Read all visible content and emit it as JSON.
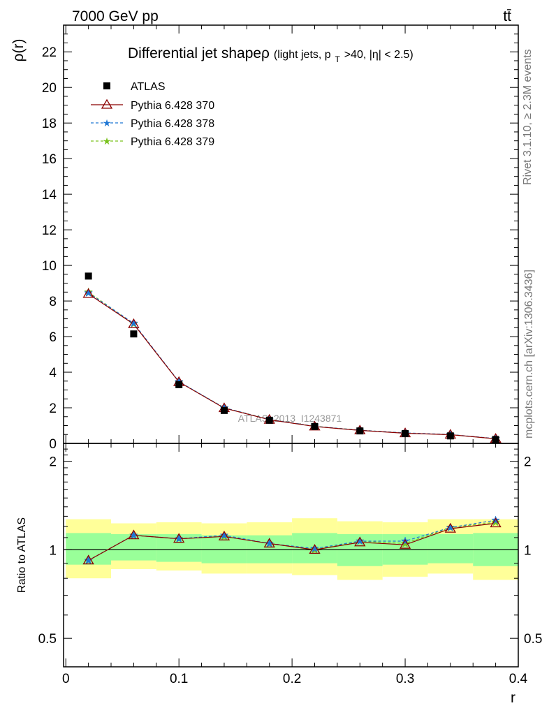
{
  "header": {
    "left": "7000 GeV pp",
    "right": "tt̄"
  },
  "side_labels": {
    "rivet": "Rivet 3.1.10, ≥ 2.3M events",
    "mcplots": "mcplots.cern.ch [arXiv:1306.3436]"
  },
  "chart_data": {
    "type": "line",
    "title_main": "Differential jet shapeρ",
    "title_sub_a": "(light jets, p",
    "title_sub_b": "T",
    "title_sub_c": ">40, |η| < 2.5)",
    "xlabel": "r",
    "ylabel": "ρ(r)",
    "ratio_ylabel": "Ratio to ATLAS",
    "watermark": "ATLAS_2013_I1243871",
    "xlim": [
      -0.002,
      0.4
    ],
    "ylim": [
      0,
      23.5
    ],
    "ratio_ylim": [
      0.4,
      2.3
    ],
    "x_ticks": [
      0,
      0.1,
      0.2,
      0.3,
      0.4
    ],
    "x_tick_labels": [
      "0",
      "0.1",
      "0.2",
      "0.3",
      "0.4"
    ],
    "y_ticks": [
      0,
      2,
      4,
      6,
      8,
      10,
      12,
      14,
      16,
      18,
      20,
      22
    ],
    "y_tick_labels": [
      "0",
      "2",
      "4",
      "6",
      "8",
      "10",
      "12",
      "14",
      "16",
      "18",
      "20",
      "22"
    ],
    "ratio_ticks": [
      0.5,
      1,
      2
    ],
    "ratio_tick_labels": [
      "0.5",
      "1",
      "2"
    ],
    "x": [
      0.02,
      0.06,
      0.1,
      0.14,
      0.18,
      0.22,
      0.26,
      0.3,
      0.34,
      0.38
    ],
    "bin_edges": [
      0.0,
      0.04,
      0.08,
      0.12,
      0.16,
      0.2,
      0.24,
      0.28,
      0.32,
      0.36,
      0.4
    ],
    "data": {
      "name": "ATLAS",
      "values": [
        9.4,
        6.15,
        3.3,
        1.85,
        1.3,
        0.95,
        0.7,
        0.55,
        0.42,
        0.22
      ],
      "band_inner": [
        [
          0.89,
          1.14
        ],
        [
          0.92,
          1.13
        ],
        [
          0.91,
          1.13
        ],
        [
          0.9,
          1.12
        ],
        [
          0.9,
          1.12
        ],
        [
          0.9,
          1.14
        ],
        [
          0.88,
          1.13
        ],
        [
          0.89,
          1.13
        ],
        [
          0.9,
          1.13
        ],
        [
          0.88,
          1.14
        ]
      ],
      "band_outer": [
        [
          0.8,
          1.27
        ],
        [
          0.86,
          1.23
        ],
        [
          0.85,
          1.24
        ],
        [
          0.83,
          1.23
        ],
        [
          0.83,
          1.24
        ],
        [
          0.82,
          1.28
        ],
        [
          0.79,
          1.25
        ],
        [
          0.81,
          1.24
        ],
        [
          0.83,
          1.27
        ],
        [
          0.79,
          1.27
        ]
      ]
    },
    "series": [
      {
        "name": "Pythia 6.428 370",
        "color": "#8b0000",
        "marker": "triangle-open",
        "dashed": false,
        "values": [
          8.4,
          6.7,
          3.45,
          1.98,
          1.33,
          0.95,
          0.73,
          0.57,
          0.49,
          0.26
        ],
        "ratio": [
          0.92,
          1.12,
          1.09,
          1.11,
          1.05,
          1.0,
          1.06,
          1.04,
          1.18,
          1.23
        ]
      },
      {
        "name": "Pythia 6.428 378",
        "color": "#1f77d4",
        "marker": "star",
        "dashed": true,
        "values": [
          8.45,
          6.75,
          3.47,
          2.0,
          1.34,
          0.96,
          0.74,
          0.59,
          0.5,
          0.27
        ],
        "ratio": [
          0.92,
          1.12,
          1.09,
          1.12,
          1.05,
          1.01,
          1.07,
          1.07,
          1.19,
          1.26
        ]
      },
      {
        "name": "Pythia 6.428 379",
        "color": "#7ac21e",
        "marker": "star",
        "dashed": true,
        "values": [
          8.5,
          6.72,
          3.46,
          2.0,
          1.34,
          0.96,
          0.74,
          0.58,
          0.49,
          0.26
        ],
        "ratio": [
          0.92,
          1.12,
          1.09,
          1.11,
          1.05,
          1.0,
          1.07,
          1.05,
          1.19,
          1.24
        ]
      }
    ]
  }
}
